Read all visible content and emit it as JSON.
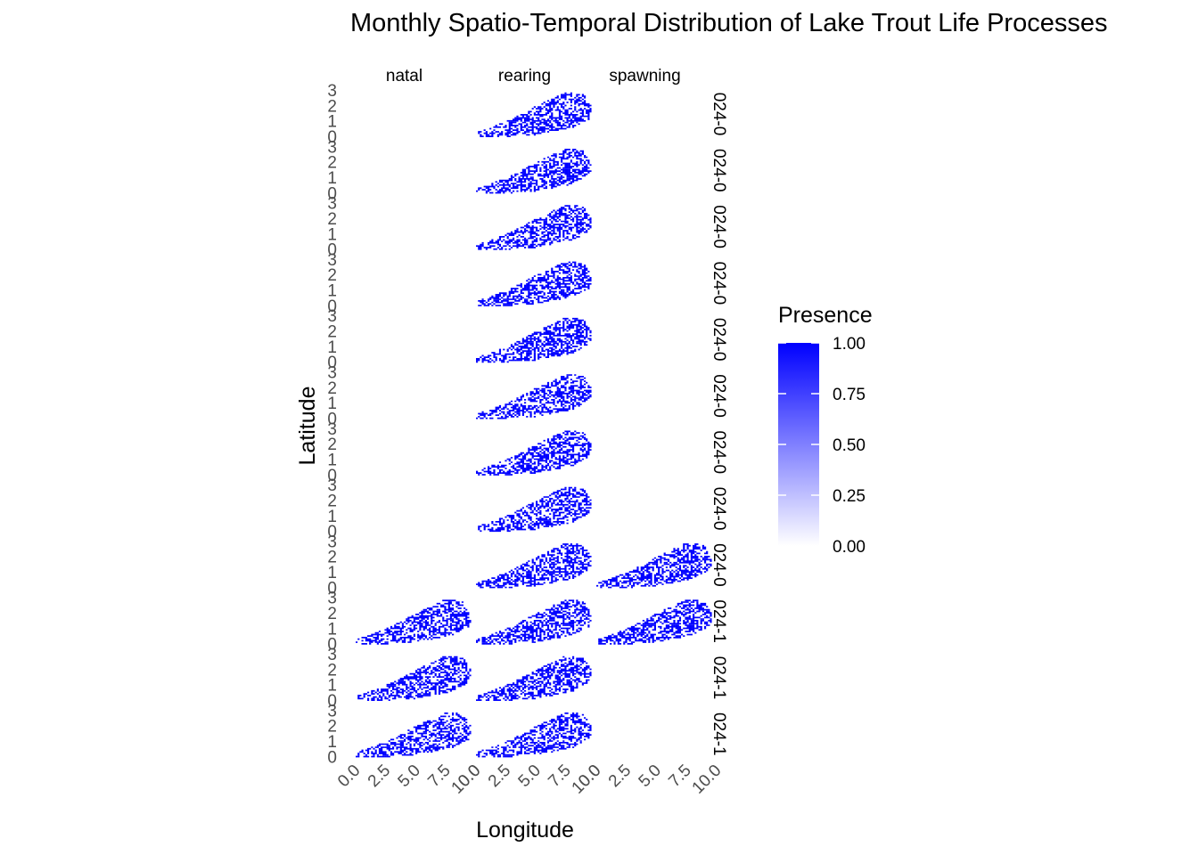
{
  "chart_data": {
    "type": "heatmap",
    "title": "Monthly Spatio-Temporal Distribution of Lake Trout Life Processes",
    "xlabel": "Longitude",
    "ylabel": "Latitude",
    "facet_columns": [
      "natal",
      "rearing",
      "spawning"
    ],
    "facet_rows": [
      "024-0",
      "024-0",
      "024-0",
      "024-0",
      "024-0",
      "024-0",
      "024-0",
      "024-0",
      "024-0",
      "024-1",
      "024-1",
      "024-1"
    ],
    "xlim": [
      0,
      10
    ],
    "ylim": [
      0,
      3
    ],
    "x_ticks": [
      "0.0",
      "2.5",
      "5.0",
      "7.5",
      "10.0"
    ],
    "y_ticks": [
      "0",
      "1",
      "2",
      "3"
    ],
    "panels_with_data": {
      "natal": [
        10,
        11,
        12
      ],
      "rearing": [
        1,
        2,
        3,
        4,
        5,
        6,
        7,
        8,
        9,
        10,
        11,
        12
      ],
      "spawning": [
        9,
        10
      ]
    },
    "fill_scale": {
      "name": "Presence",
      "low_color": "#FFFFFF",
      "high_color": "#0000FF",
      "limits": [
        0,
        1
      ],
      "ticks": [
        "0.00",
        "0.25",
        "0.50",
        "0.75",
        "1.00"
      ]
    },
    "grid": false,
    "legend_position": "right"
  }
}
